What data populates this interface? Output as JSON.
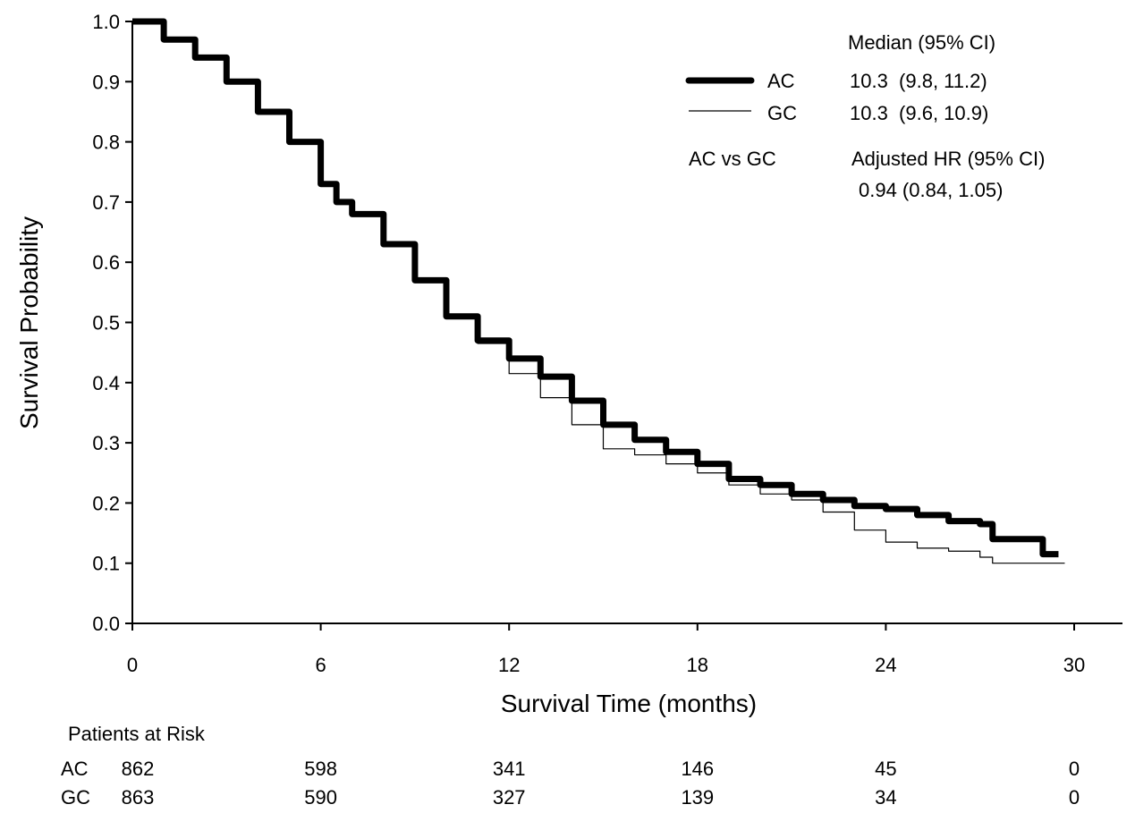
{
  "chart_data": {
    "type": "line",
    "xlabel": "Survival Time (months)",
    "ylabel": "Survival Probability",
    "xlim": [
      0,
      30
    ],
    "ylim": [
      0,
      1.0
    ],
    "x_ticks": [
      0,
      6,
      12,
      18,
      24,
      30
    ],
    "y_ticks": [
      0.0,
      0.1,
      0.2,
      0.3,
      0.4,
      0.5,
      0.6,
      0.7,
      0.8,
      0.9,
      1.0
    ],
    "grid": false,
    "series": [
      {
        "name": "AC",
        "style": "thick",
        "x": [
          0,
          1,
          2,
          3,
          4,
          5,
          6,
          6.5,
          7,
          8,
          9,
          10,
          11,
          12,
          13,
          14,
          15,
          16,
          17,
          18,
          19,
          20,
          21,
          22,
          23,
          24,
          25,
          26,
          27,
          27.4,
          28,
          29,
          29.5
        ],
        "y": [
          1.0,
          0.97,
          0.94,
          0.9,
          0.85,
          0.8,
          0.73,
          0.7,
          0.68,
          0.63,
          0.57,
          0.51,
          0.47,
          0.44,
          0.41,
          0.37,
          0.33,
          0.305,
          0.285,
          0.265,
          0.24,
          0.23,
          0.215,
          0.205,
          0.195,
          0.19,
          0.18,
          0.17,
          0.165,
          0.14,
          0.14,
          0.115,
          0.115
        ]
      },
      {
        "name": "GC",
        "style": "thin",
        "x": [
          0,
          1,
          2,
          3,
          4,
          5,
          6,
          6.5,
          7,
          8,
          9,
          10,
          11,
          12,
          13,
          14,
          15,
          16,
          17,
          18,
          19,
          20,
          21,
          22,
          23,
          24,
          25,
          26,
          27,
          27.4,
          28,
          29,
          29.7
        ],
        "y": [
          1.0,
          0.97,
          0.94,
          0.9,
          0.85,
          0.8,
          0.73,
          0.7,
          0.68,
          0.63,
          0.57,
          0.51,
          0.465,
          0.415,
          0.375,
          0.33,
          0.29,
          0.28,
          0.265,
          0.25,
          0.23,
          0.215,
          0.205,
          0.185,
          0.155,
          0.135,
          0.125,
          0.12,
          0.11,
          0.1,
          0.1,
          0.1,
          0.1
        ]
      }
    ],
    "legend": {
      "placement": "top-right",
      "median_header": "Median (95% CI)",
      "entries": [
        {
          "label": "AC",
          "median": "10.3  (9.8, 11.2)",
          "style": "thick"
        },
        {
          "label": "GC",
          "median": "10.3  (9.6, 10.9)",
          "style": "thin"
        }
      ],
      "comparison_label": "AC vs GC",
      "hr_header": "Adjusted HR (95% CI)",
      "hr_value": "0.94 (0.84, 1.05)"
    },
    "at_risk": {
      "title": "Patients at Risk",
      "rows": [
        {
          "group": "AC",
          "counts": [
            "862",
            "598",
            "341",
            "146",
            "45",
            "0"
          ]
        },
        {
          "group": "GC",
          "counts": [
            "863",
            "590",
            "327",
            "139",
            "34",
            "0"
          ]
        }
      ]
    }
  }
}
